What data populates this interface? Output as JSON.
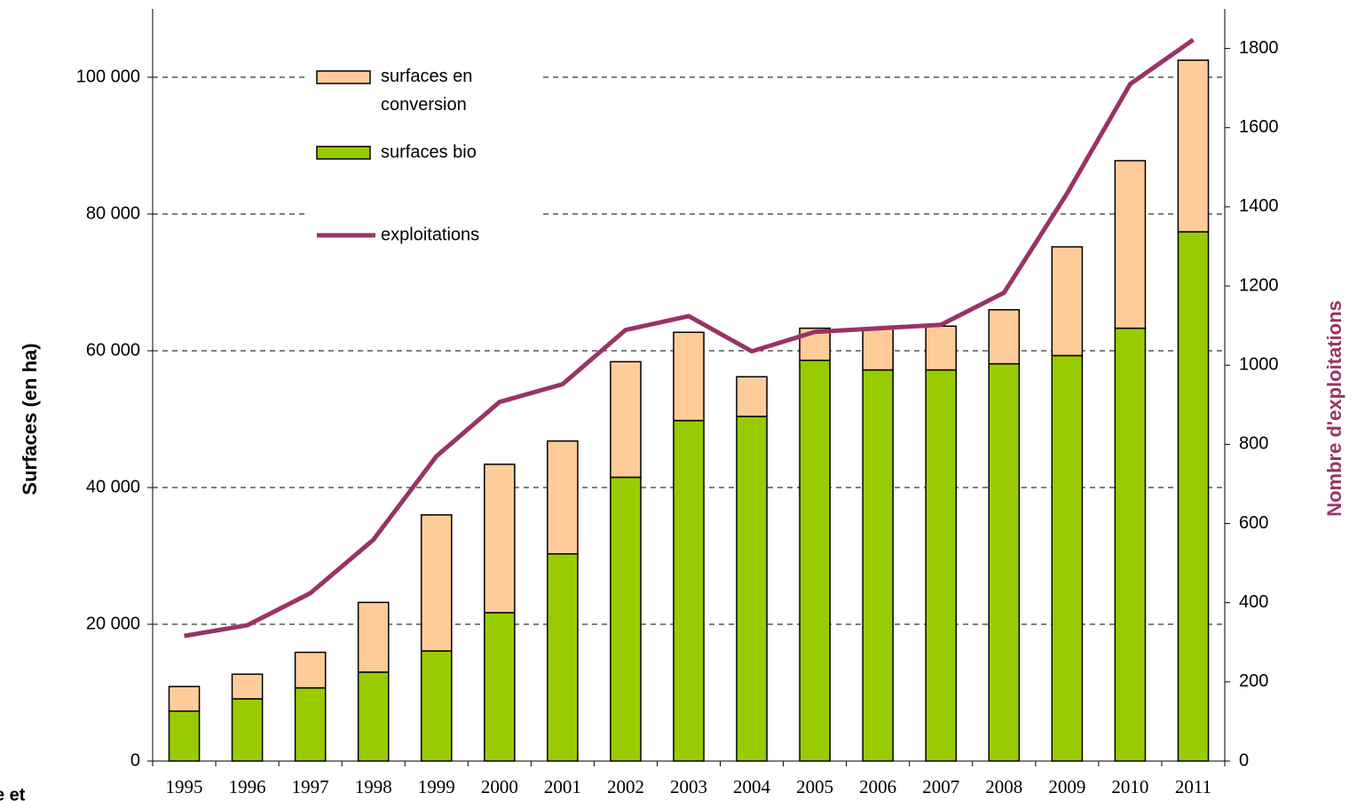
{
  "chart_data": {
    "type": "bar",
    "categories": [
      "1995",
      "1996",
      "1997",
      "1998",
      "1999",
      "2000",
      "2001",
      "2002",
      "2003",
      "2004",
      "2005",
      "2006",
      "2007",
      "2008",
      "2009",
      "2010",
      "2011"
    ],
    "series": [
      {
        "name": "surfaces bio",
        "color": "#99cc00",
        "stacked": true,
        "values": [
          7300,
          9100,
          10700,
          13000,
          16100,
          21700,
          30300,
          41500,
          49800,
          50400,
          58600,
          57200,
          57200,
          58100,
          59300,
          63300,
          77400
        ]
      },
      {
        "name": "surfaces en conversion",
        "color": "#ffcc99",
        "stacked": true,
        "values": [
          3600,
          3600,
          5200,
          10200,
          19900,
          21700,
          16500,
          16900,
          12900,
          5800,
          4700,
          6100,
          6400,
          7900,
          15900,
          24500,
          25100
        ]
      },
      {
        "name": "exploitations",
        "color": "#993366",
        "type": "line",
        "axis": "y2",
        "values": [
          316,
          343,
          424,
          559,
          770,
          907,
          952,
          1089,
          1124,
          1035,
          1084,
          1093,
          1102,
          1183,
          1434,
          1710,
          1822
        ]
      }
    ],
    "ylabel": "Surfaces (en ha)",
    "y2label": "Nombre d'exploitations",
    "ylim": [
      0,
      110000
    ],
    "yticks": [
      0,
      {
        "value": 20000,
        "label": "20 000"
      },
      {
        "value": 40000,
        "label": "40 000"
      },
      {
        "value": 60000,
        "label": "60 000"
      },
      {
        "value": 80000,
        "label": "80 000"
      },
      {
        "value": 100000,
        "label": "100 000"
      }
    ],
    "y2lim": [
      0,
      1900
    ],
    "y2ticks": [
      0,
      200,
      400,
      600,
      800,
      1000,
      1200,
      1400,
      1600,
      1800
    ],
    "grid": true,
    "legend": "upper left",
    "note": "e et"
  }
}
